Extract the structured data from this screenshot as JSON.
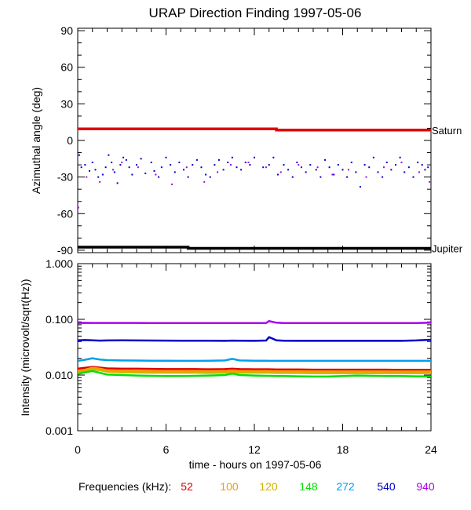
{
  "title": "URAP Direction Finding  1997-05-06",
  "xlabel": "time - hours on 1997-05-06",
  "frequencies_label": "Frequencies (kHz):",
  "chart_data": [
    {
      "type": "scatter",
      "panel": "top",
      "ylabel": "Azimuthal angle (deg)",
      "xlim": [
        0,
        24
      ],
      "ylim": [
        -92,
        92
      ],
      "y_ticks": [
        90,
        60,
        30,
        0,
        -30,
        -60,
        -90
      ],
      "reference_lines": [
        {
          "name": "Saturn",
          "color": "#e00000",
          "x": [
            0,
            13.5,
            13.5,
            24
          ],
          "y": [
            9.5,
            9.5,
            8.5,
            8.5
          ]
        },
        {
          "name": "Jupiter",
          "color": "#000000",
          "x": [
            0,
            7.5,
            7.5,
            24
          ],
          "y": [
            -87.5,
            -87.5,
            -88.5,
            -88.5
          ]
        }
      ],
      "series": [
        {
          "color": "#0000cc",
          "x": [
            0.1,
            0.25,
            0.5,
            0.8,
            1.0,
            1.2,
            1.4,
            1.7,
            1.9,
            2.1,
            2.3,
            2.5,
            2.7,
            2.9,
            3.1,
            3.3,
            3.5,
            3.7,
            4.0,
            4.3,
            4.6,
            5.0,
            5.2,
            5.5,
            5.7,
            6.0,
            6.3,
            6.6,
            6.9,
            7.2,
            7.5,
            7.8,
            8.1,
            8.4,
            8.7,
            9.0,
            9.3,
            9.6,
            9.9,
            10.2,
            10.5,
            10.8,
            11.1,
            11.4,
            11.7,
            12.0,
            12.6,
            13.0,
            13.3,
            13.6,
            14.0,
            14.3,
            14.6,
            14.9,
            15.2,
            15.5,
            15.8,
            16.2,
            16.5,
            16.8,
            17.1,
            17.4,
            17.7,
            18.0,
            18.3,
            18.6,
            18.9,
            19.2,
            19.5,
            19.8,
            20.1,
            20.4,
            20.7,
            21.0,
            21.3,
            21.6,
            21.9,
            22.2,
            22.5,
            22.8,
            23.1,
            23.4,
            23.6,
            23.8
          ],
          "y": [
            -12,
            -22,
            -20,
            -25,
            -18,
            -24,
            -30,
            -28,
            -22,
            -12,
            -18,
            -26,
            -35,
            -20,
            -14,
            -16,
            -22,
            -28,
            -20,
            -15,
            -27,
            -18,
            -25,
            -30,
            -22,
            -14,
            -20,
            -26,
            -18,
            -24,
            -30,
            -20,
            -16,
            -22,
            -28,
            -30,
            -20,
            -16,
            -24,
            -18,
            -14,
            -22,
            -24,
            -18,
            -20,
            -14,
            -22,
            -20,
            -14,
            -28,
            -20,
            -24,
            -30,
            -18,
            -22,
            -26,
            -20,
            -24,
            -30,
            -16,
            -22,
            -28,
            -20,
            -24,
            -30,
            -18,
            -26,
            -38,
            -20,
            -22,
            -14,
            -26,
            -30,
            -18,
            -24,
            -20,
            -14,
            -26,
            -22,
            -30,
            -18,
            -20,
            -24,
            -22
          ]
        },
        {
          "color": "#aa00ee",
          "x": [
            0.05,
            0.6,
            1.5,
            2.4,
            3.0,
            4.1,
            5.3,
            6.4,
            7.4,
            8.6,
            9.5,
            10.4,
            11.6,
            12.8,
            13.8,
            15.0,
            16.3,
            17.3,
            18.4,
            19.6,
            20.8,
            22.0,
            23.2,
            23.9
          ],
          "y": [
            -55,
            -30,
            -34,
            -24,
            -18,
            -22,
            -28,
            -36,
            -22,
            -34,
            -26,
            -20,
            -18,
            -22,
            -26,
            -20,
            -22,
            -28,
            -24,
            -30,
            -22,
            -18,
            -26,
            -34
          ]
        }
      ]
    },
    {
      "type": "line",
      "panel": "bottom",
      "ylabel": "Intensity (microvolt/sqrt(Hz))",
      "yscale": "log",
      "xlim": [
        0,
        24
      ],
      "ylim": [
        0.001,
        1.0
      ],
      "y_ticks": [
        "1.000",
        "0.100",
        "0.010",
        "0.001"
      ],
      "x": [
        0,
        0.5,
        1,
        1.5,
        2,
        3,
        4,
        5,
        6,
        7,
        8,
        9,
        10,
        10.5,
        11,
        12,
        12.8,
        13,
        13.5,
        14,
        15,
        16,
        17,
        18,
        19,
        20,
        21,
        22,
        23,
        24
      ],
      "series": [
        {
          "name": "52",
          "color": "#dd0000",
          "values": [
            0.013,
            0.0135,
            0.014,
            0.0136,
            0.0132,
            0.013,
            0.013,
            0.0129,
            0.0128,
            0.0128,
            0.0128,
            0.0127,
            0.0128,
            0.013,
            0.0128,
            0.0127,
            0.0127,
            0.0127,
            0.0126,
            0.0126,
            0.0126,
            0.0125,
            0.0125,
            0.0125,
            0.0125,
            0.0125,
            0.0125,
            0.0124,
            0.0124,
            0.0124
          ]
        },
        {
          "name": "100",
          "color": "#ff9900",
          "values": [
            0.012,
            0.0125,
            0.0135,
            0.013,
            0.0122,
            0.012,
            0.0119,
            0.0118,
            0.0118,
            0.0118,
            0.0118,
            0.0117,
            0.0118,
            0.0121,
            0.0118,
            0.0118,
            0.0118,
            0.0118,
            0.0117,
            0.0117,
            0.0117,
            0.0116,
            0.0116,
            0.0116,
            0.0116,
            0.0116,
            0.0116,
            0.0116,
            0.0116,
            0.0116
          ]
        },
        {
          "name": "120",
          "color": "#d4b000",
          "values": [
            0.0112,
            0.0118,
            0.0128,
            0.0122,
            0.0115,
            0.0112,
            0.0111,
            0.011,
            0.011,
            0.011,
            0.011,
            0.0109,
            0.011,
            0.0113,
            0.011,
            0.011,
            0.011,
            0.011,
            0.0109,
            0.0109,
            0.0109,
            0.0108,
            0.0108,
            0.0108,
            0.0108,
            0.0108,
            0.0108,
            0.0108,
            0.0108,
            0.0108
          ]
        },
        {
          "name": "148",
          "color": "#00e000",
          "values": [
            0.0105,
            0.0112,
            0.0118,
            0.011,
            0.0102,
            0.01,
            0.0098,
            0.0097,
            0.0096,
            0.0096,
            0.0097,
            0.0098,
            0.01,
            0.0106,
            0.01,
            0.0098,
            0.0097,
            0.0097,
            0.0096,
            0.0096,
            0.0095,
            0.0094,
            0.0094,
            0.0096,
            0.0098,
            0.0097,
            0.0096,
            0.0096,
            0.0095,
            0.0095
          ]
        },
        {
          "name": "272",
          "color": "#00a0ee",
          "values": [
            0.018,
            0.0188,
            0.02,
            0.019,
            0.0185,
            0.0183,
            0.0182,
            0.0181,
            0.0181,
            0.018,
            0.018,
            0.0181,
            0.0183,
            0.0195,
            0.0183,
            0.0181,
            0.0181,
            0.018,
            0.018,
            0.018,
            0.018,
            0.018,
            0.018,
            0.018,
            0.018,
            0.018,
            0.018,
            0.018,
            0.018,
            0.018
          ]
        },
        {
          "name": "540",
          "color": "#0000cc",
          "values": [
            0.042,
            0.0425,
            0.042,
            0.0415,
            0.0418,
            0.042,
            0.0418,
            0.0416,
            0.0415,
            0.0414,
            0.0414,
            0.0413,
            0.0412,
            0.0415,
            0.0413,
            0.0412,
            0.0416,
            0.048,
            0.042,
            0.0413,
            0.0412,
            0.0412,
            0.0412,
            0.0412,
            0.0412,
            0.0412,
            0.0412,
            0.0412,
            0.0418,
            0.043
          ]
        },
        {
          "name": "940",
          "color": "#aa00ee",
          "values": [
            0.086,
            0.0865,
            0.0862,
            0.086,
            0.086,
            0.086,
            0.086,
            0.0858,
            0.0858,
            0.0857,
            0.0857,
            0.0857,
            0.0856,
            0.0858,
            0.0856,
            0.0856,
            0.086,
            0.093,
            0.087,
            0.0858,
            0.0856,
            0.0856,
            0.0856,
            0.0856,
            0.0856,
            0.0856,
            0.0856,
            0.0856,
            0.0858,
            0.087
          ]
        }
      ]
    }
  ],
  "x_ticks": [
    "0",
    "6",
    "12",
    "18",
    "24"
  ]
}
